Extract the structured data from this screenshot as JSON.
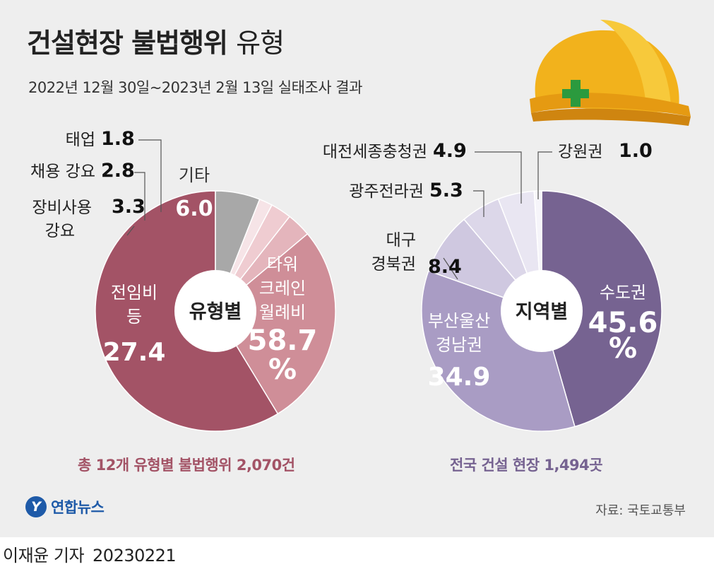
{
  "title": {
    "main": "건설현장 불법행위",
    "light": "유형"
  },
  "subtitle": "2022년 12월 30일~2023년 2월 13일 실태조사 결과",
  "chart_data": [
    {
      "type": "pie",
      "center_label": "유형별",
      "total_label": "총 12개 유형별 불법행위 2,070건",
      "colors": [
        "#a35366",
        "#cf8e98",
        "#e4b5bc",
        "#efccd1",
        "#f6e4e7",
        "#a8a8a8"
      ],
      "slices": [
        {
          "name": "타워 크레인 월례비",
          "value": 58.7,
          "value_text": "58.7",
          "unit": "%"
        },
        {
          "name": "전임비 등 강요",
          "value": 27.4,
          "value_text": "27.4"
        },
        {
          "name": "장비사용 강요",
          "value": 3.3,
          "value_text": "3.3"
        },
        {
          "name": "채용 강요",
          "value": 2.8,
          "value_text": "2.8"
        },
        {
          "name": "태업",
          "value": 1.8,
          "value_text": "1.8"
        },
        {
          "name": "기타",
          "value": 6.0,
          "value_text": "6.0"
        }
      ]
    },
    {
      "type": "pie",
      "center_label": "지역별",
      "total_label": "전국 건설 현장 1,494곳",
      "colors": [
        "#766391",
        "#a99cc4",
        "#cfc8e0",
        "#dcd7e9",
        "#e9e6f2",
        "#f6f5fa"
      ],
      "slices": [
        {
          "name": "수도권",
          "value": 45.6,
          "value_text": "45.6",
          "unit": "%"
        },
        {
          "name": "부산울산 경남권",
          "value": 34.9,
          "value_text": "34.9"
        },
        {
          "name": "대구 경북권",
          "value": 8.4,
          "value_text": "8.4"
        },
        {
          "name": "광주전라권",
          "value": 5.3,
          "value_text": "5.3"
        },
        {
          "name": "대전세종충청권",
          "value": 4.9,
          "value_text": "4.9"
        },
        {
          "name": "강원권",
          "value": 1.0,
          "value_text": "1.0"
        }
      ]
    }
  ],
  "logo": {
    "mark": "Y",
    "text": "연합뉴스"
  },
  "source": "자료: 국토교통부",
  "credit": {
    "reporter": "이재윤 기자",
    "date": "20230221"
  }
}
